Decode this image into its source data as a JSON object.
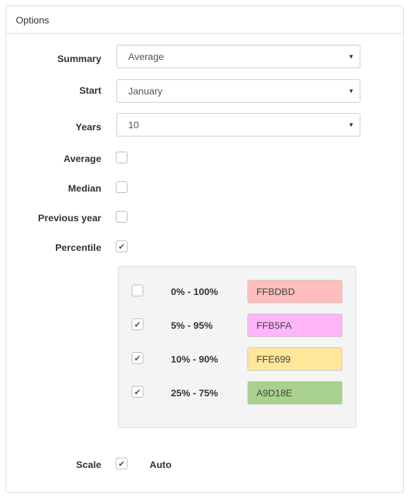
{
  "panel": {
    "title": "Options"
  },
  "fields": {
    "summary": {
      "label": "Summary",
      "value": "Average"
    },
    "start": {
      "label": "Start",
      "value": "January"
    },
    "years": {
      "label": "Years",
      "value": "10"
    },
    "average": {
      "label": "Average",
      "checked": false
    },
    "median": {
      "label": "Median",
      "checked": false
    },
    "previous_year": {
      "label": "Previous year",
      "checked": false
    },
    "percentile": {
      "label": "Percentile",
      "checked": true
    }
  },
  "percentiles": [
    {
      "label": "0% - 100%",
      "checked": false,
      "color": "FFBDBD",
      "hex": "#FFBDBD"
    },
    {
      "label": "5% - 95%",
      "checked": true,
      "color": "FFB5FA",
      "hex": "#FFB5FA"
    },
    {
      "label": "10% - 90%",
      "checked": true,
      "color": "FFE699",
      "hex": "#FFE699"
    },
    {
      "label": "25% - 75%",
      "checked": true,
      "color": "A9D18E",
      "hex": "#A9D18E"
    }
  ],
  "scale": {
    "label": "Scale",
    "auto_checked": true,
    "auto_label": "Auto"
  },
  "glyphs": {
    "check": "✔",
    "caret": "▼"
  }
}
